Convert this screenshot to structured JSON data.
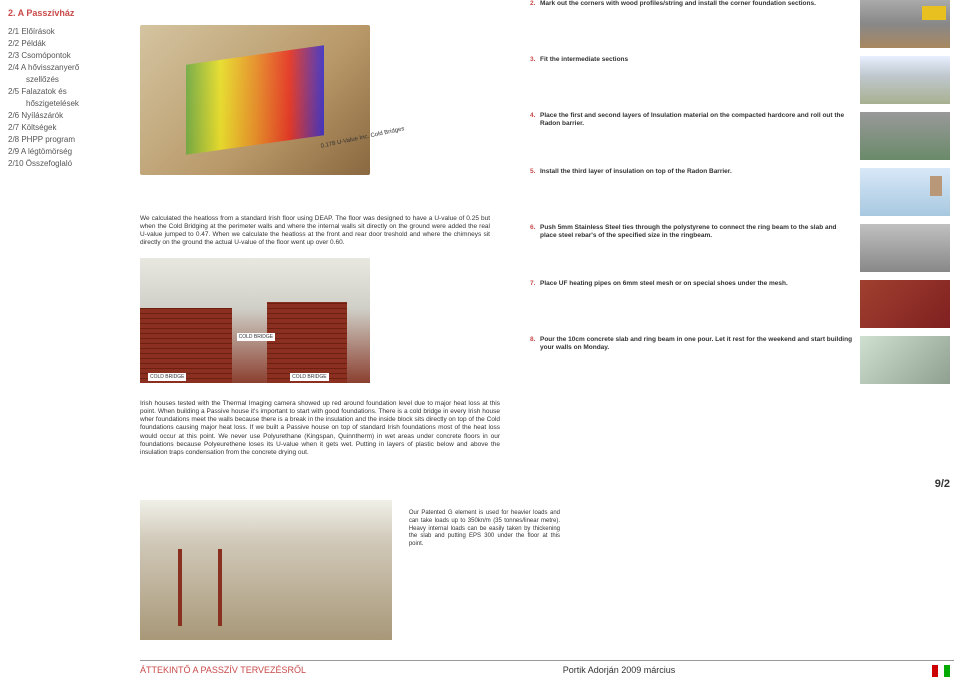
{
  "sidebar": {
    "title": "2. A Passzívház",
    "items": [
      {
        "label": "2/1 Előírások",
        "indent": false
      },
      {
        "label": "2/2 Példák",
        "indent": false
      },
      {
        "label": "2/3 Csomópontok",
        "indent": false
      },
      {
        "label": "2/4 A hővisszanyerő",
        "indent": false
      },
      {
        "label": "szellőzés",
        "indent": true
      },
      {
        "label": "2/5 Falazatok és",
        "indent": false
      },
      {
        "label": "hőszigetelések",
        "indent": true
      },
      {
        "label": "2/6 Nyílászárók",
        "indent": false
      },
      {
        "label": "2/7 Költségek",
        "indent": false
      },
      {
        "label": "2/8 PHPP program",
        "indent": false
      },
      {
        "label": "2/9 A légtömörség",
        "indent": false
      },
      {
        "label": "2/10 Összefoglaló",
        "indent": false
      }
    ]
  },
  "uvalue_label": "0.178 U-Value Inc. Cold Bridges",
  "text1": "We calculated the heatloss from a standard Irish floor using DEAP. The floor was designed to have a U-value of 0.25 but when the Cold Bridging at the perimeter walls and where the internal walls sit directly on the ground were added the real U-value jumped to 0.47. When we calculate the heatloss at the front and rear door treshold and where the chimneys sit directly on the ground the actual U-value of the floor went up over 0.60.",
  "coldbridge": {
    "label": "COLD BRIDGE"
  },
  "text2": "Irish houses tested with the Thermal Imaging camera showed up red around foundation level due to major heat loss at this point. When building a Passive house it's important to start with good foundations. There is a cold bridge in every Irish house wher foundations meet the walls because there is a break in the insulation and the inside block sits directly on top of the Cold foundations causing major heat loss. If we built a Passive house on top of standard Irish foundations most of the heat loss would occur at this point. We never use Polyurethane (Kingspan, Quinntherm) in wet areas under concrete floors in our foundations because Polyeurethene loses its U-value when it gets wet. Putting in layers of plastic below and above the insulation traps condensation from the concrete drying out.",
  "steps": [
    {
      "n": "2.",
      "txt": "Mark out the corners with wood profiles/string and install the corner foundation sections.",
      "thumb": "th2"
    },
    {
      "n": "3.",
      "txt": "Fit the intermediate sections",
      "thumb": "th3"
    },
    {
      "n": "4.",
      "txt": "Place the first and second layers of Insulation material on the compacted hardcore and roll out the Radon barrier.",
      "thumb": "th4"
    },
    {
      "n": "5.",
      "txt": "Install the third layer of insulation on top of the Radon Barrier.",
      "thumb": "th5"
    },
    {
      "n": "6.",
      "txt": "Push 5mm Stainless Steel ties through the polystyrene to connect the ring beam to the slab and place steel rebar's of the specified size in the ringbeam.",
      "thumb": "th6"
    },
    {
      "n": "7.",
      "txt": "Place UF heating pipes on 6mm steel mesh or on special shoes under the mesh.",
      "thumb": "th7"
    },
    {
      "n": "8.",
      "txt": "Pour the 10cm concrete slab and ring beam in one pour. Let it rest for the weekend and start building your walls on Monday.",
      "thumb": "th8"
    }
  ],
  "bigfig_text": "Our Patented G element is used for heavier loads and can take loads up to 350kn/m (35 tonnes/linear metre). Heavy internal loads can be easily taken by thickening the slab and putting EPS 300 under the floor at this point.",
  "pagenum": "9/2",
  "footer": {
    "left": "ÁTTEKINTŐ A PASSZÍV TERVEZÉSRŐL",
    "mid": "Portik Adorján 2009 március"
  }
}
